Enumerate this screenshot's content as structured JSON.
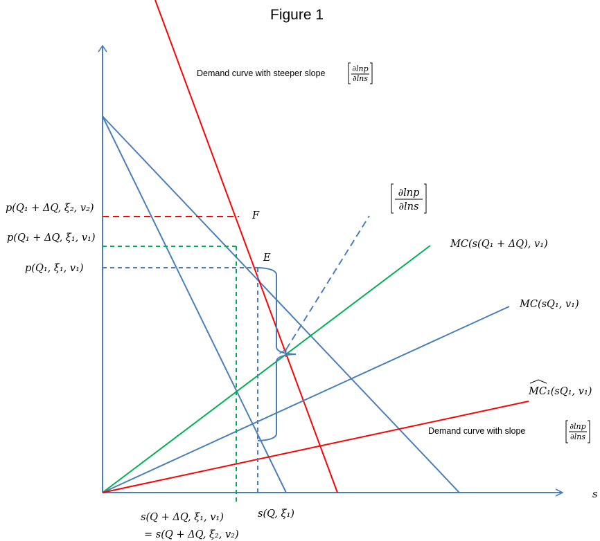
{
  "title": "Figure 1",
  "axis": {
    "x_label": "s"
  },
  "labels": {
    "steep_demand_text": "Demand curve with steeper slope",
    "steep_demand_frac_num": "∂lnp",
    "steep_demand_frac_den": "∂lns",
    "demand_text": "Demand curve with slope",
    "demand_frac_num": "∂lnp",
    "demand_frac_den": "∂lns",
    "mid_frac_num": "∂lnp",
    "mid_frac_den": "∂lns",
    "point_F": "F",
    "point_E": "E",
    "mc_shifted": "MC(s(Q₁ + ΔQ), v₁)",
    "mc": "MC(sQ₁, v₁)",
    "mc_hat": "MC₁(sQ₁, v₁)",
    "p_xi2": "p(Q₁ + ΔQ, ξ₂, v₂)",
    "p_xi1_shifted": "p(Q₁ + ΔQ, ξ₁, v₁)",
    "p_base": "p(Q₁, ξ₁, v₁)",
    "s_base": "s(Q, ξ₁)",
    "s_shifted": "s(Q + ΔQ, ξ₁, v₁)",
    "s_equal": "= s(Q + ΔQ, ξ₂, v₂)"
  },
  "colors": {
    "axis": "#4a7ebb",
    "blue": "#4a7ebb",
    "red": "#ff0000",
    "green": "#00b050"
  }
}
